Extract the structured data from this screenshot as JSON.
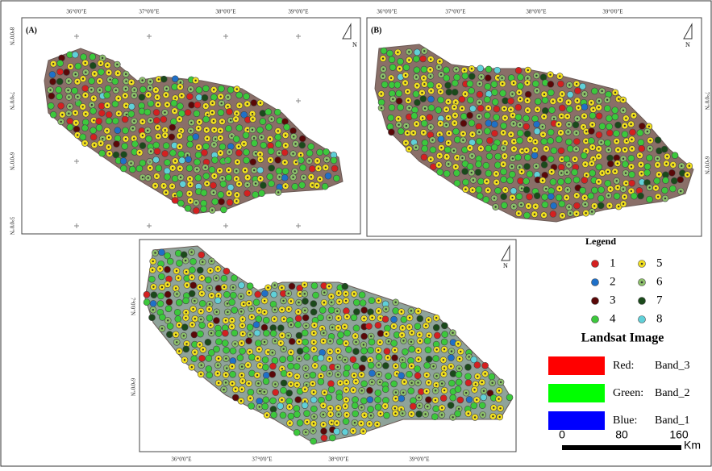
{
  "panels": [
    {
      "label": "(A)",
      "lon_labels": [
        "36°0'0\"E",
        "37°0'0\"E",
        "38°0'0\"E",
        "39°0'0\"E"
      ],
      "lat_labels": [
        "8°0'0\"N",
        "7°0'0\"N",
        "6°0'0\"N",
        "5°0'0\"N"
      ]
    },
    {
      "label": "(B)",
      "lon_labels": [
        "36°0'0\"E",
        "37°0'0\"E",
        "38°0'0\"E",
        "39°0'0\"E"
      ],
      "lat_labels": [
        "7°0'0\"N",
        "6°0'0\"N"
      ]
    },
    {
      "lon_labels": [
        "36°0'0\"E",
        "37°0'0\"E",
        "38°0'0\"E",
        "39°0'0\"E"
      ],
      "lat_labels": [
        "7°0'0\"N",
        "6°0'0\"N"
      ]
    }
  ],
  "north": "N",
  "legend": {
    "title": "Legend",
    "items": [
      {
        "label": "1",
        "color": "#d42020"
      },
      {
        "label": "2",
        "color": "#1f70c8"
      },
      {
        "label": "3",
        "color": "#5a0808"
      },
      {
        "label": "4",
        "color": "#3cc83c"
      },
      {
        "label": "5",
        "color": "#f2e020"
      },
      {
        "label": "6",
        "color": "#8cbf6a"
      },
      {
        "label": "7",
        "color": "#1b4a1b"
      },
      {
        "label": "8",
        "color": "#60d0d8"
      }
    ]
  },
  "image_legend": {
    "title": "Landsat Image",
    "bands": [
      {
        "channel": "Red:",
        "band": "Band_3",
        "color": "#ff0000"
      },
      {
        "channel": "Green:",
        "band": "Band_2",
        "color": "#00ff00"
      },
      {
        "channel": "Blue:",
        "band": "Band_1",
        "color": "#0000ff"
      }
    ]
  },
  "scale_bar": {
    "ticks": [
      "0",
      "80",
      "160"
    ],
    "unit": "Km"
  }
}
